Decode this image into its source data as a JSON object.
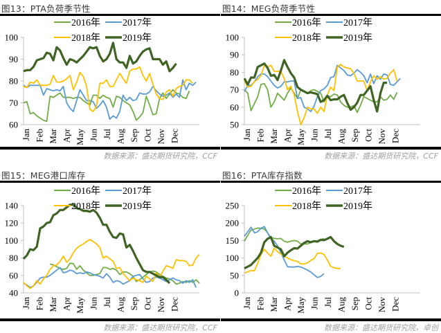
{
  "panels": [
    {
      "title": "图13：PTA负荷季节性",
      "source": "数据来源：盛达期货研究院，CCF"
    },
    {
      "title": "图14：MEG负荷季节性",
      "source": "数据来源：盛达期货研究院，CCF"
    },
    {
      "title": "图15：MEG港口库存",
      "source": "数据来源：盛达期货研究院，CCF"
    },
    {
      "title": "图16：PTA库存指数",
      "source": "数据来源：盛达期货研究院，卓创"
    }
  ],
  "colors": {
    "2016年": "#70ad47",
    "2017年": "#5b9bd5",
    "2018年": "#ffc000",
    "2019年": "#3f6424"
  },
  "chart_data": [
    {
      "type": "line",
      "title": "图13：PTA负荷季节性",
      "xlabel": "",
      "ylabel": "",
      "categories": [
        "Jan",
        "Feb",
        "Mar",
        "Apr",
        "May",
        "Jun",
        "Jul",
        "Aug",
        "Sep",
        "Oct",
        "Nov",
        "Dec"
      ],
      "ylim": [
        60,
        100
      ],
      "yticks": [
        60,
        70,
        80,
        90,
        100
      ],
      "legend": "top-center",
      "grid": false,
      "series": [
        {
          "name": "2016年",
          "values": [
            70,
            70.5,
            65,
            65.5,
            64,
            63,
            62,
            61.5,
            73,
            72.5,
            73.5,
            74.5,
            72.5,
            72.5,
            72.5,
            72,
            72.5,
            72.5,
            71,
            70,
            69,
            73.5,
            73.5,
            72,
            73.5,
            72.5,
            72,
            68,
            73,
            72.5,
            71,
            70,
            69,
            66,
            62,
            63.5,
            65.5,
            73,
            69,
            64.5,
            65,
            72,
            74.5,
            72,
            74,
            76,
            74.5,
            74,
            72.5,
            72,
            75.5
          ]
        },
        {
          "name": "2017年",
          "values": [
            78,
            77,
            78,
            78,
            78,
            78,
            73.5,
            76.5,
            76,
            75.5,
            76,
            75.5,
            77.5,
            70,
            67.5,
            66,
            71,
            76,
            73.5,
            71,
            71,
            70.5,
            67.5,
            69,
            71,
            68,
            62.5,
            64,
            63,
            66,
            73.5,
            71,
            72.5,
            71,
            71.5,
            74.5,
            74,
            74,
            75,
            77.5,
            75.5,
            74,
            73,
            73.5,
            74.5,
            72.5,
            74,
            72.5,
            80.5,
            76,
            79,
            78,
            79.5
          ]
        },
        {
          "name": "2018年",
          "values": [
            77.5,
            77,
            79.5,
            79,
            80.5,
            78,
            78,
            78,
            78.5,
            82.5,
            79.5,
            79.5,
            80,
            81,
            82.5,
            76,
            79.5,
            84,
            82,
            77.5,
            67,
            66,
            68.5,
            79,
            79,
            80.5,
            77.5,
            77.5,
            80.5,
            83.5,
            81,
            79,
            84.5,
            85.5,
            85.5,
            86.5,
            82.5,
            80,
            83.5,
            78.5,
            74,
            72,
            71.5,
            75,
            76,
            73,
            76.5,
            77.5,
            78,
            80.5,
            80.5,
            79
          ]
        },
        {
          "name": "2019年",
          "values": [
            84.5,
            85,
            85,
            86.5,
            89.5,
            90,
            90.5,
            93,
            92.5,
            89.5,
            95.5,
            94,
            90.5,
            87.5,
            90,
            89.5,
            88.5,
            90,
            91.5,
            93.5,
            95.5,
            95,
            95.5,
            91.5,
            89,
            90,
            92.5,
            97.5,
            90,
            88.5,
            88.5,
            86,
            91.5,
            88,
            89,
            91.5,
            93.5,
            94.5,
            95,
            90,
            90,
            90,
            87.5,
            89,
            84.5,
            86,
            88
          ]
        }
      ]
    },
    {
      "type": "line",
      "title": "图14：MEG负荷季节性",
      "xlabel": "",
      "ylabel": "",
      "categories": [
        "Jan",
        "Feb",
        "Mar",
        "Apr",
        "May",
        "Jun",
        "Jul",
        "Aug",
        "Sep",
        "Oct",
        "Nov",
        "Dec"
      ],
      "ylim": [
        50,
        100
      ],
      "yticks": [
        50,
        60,
        70,
        80,
        90,
        100
      ],
      "legend": "top-center",
      "grid": false,
      "series": [
        {
          "name": "2016年",
          "values": [
            70,
            68,
            58,
            62,
            66,
            73,
            73.5,
            70,
            60,
            63,
            68,
            66,
            64,
            68,
            71,
            68,
            65,
            70,
            69,
            68,
            69.5,
            70,
            69,
            68,
            63,
            66.5,
            66,
            67.5,
            67,
            63,
            61,
            60,
            60,
            61,
            57,
            61,
            66,
            65,
            64,
            63,
            63,
            66,
            64,
            64.5,
            67,
            64.5,
            68.5
          ]
        },
        {
          "name": "2017年",
          "values": [
            69,
            72.5,
            72.5,
            74.5,
            77.5,
            79,
            79,
            77.5,
            75,
            72.5,
            71,
            72,
            74.5,
            74.5,
            75,
            75,
            65,
            65.5,
            60,
            59,
            57.5,
            60.5,
            66,
            69.5,
            70.5,
            72.5,
            77,
            77.5,
            84,
            82.5,
            81,
            78.5,
            78,
            79.5,
            81.5,
            80,
            78,
            74,
            79,
            73.5,
            78,
            76,
            79,
            78.5,
            73,
            72.5,
            74.5,
            76.5
          ]
        },
        {
          "name": "2018年",
          "values": [
            75.5,
            71.5,
            72,
            74.5,
            76,
            78,
            84,
            83,
            84,
            80.5,
            80.5,
            80.5,
            76.5,
            70,
            72,
            67,
            57.5,
            50,
            54,
            60,
            59,
            59,
            56.5,
            60,
            57.5,
            67,
            71.5,
            69.5,
            83,
            84.5,
            83,
            82.5,
            82,
            79.5,
            75,
            75,
            75,
            69.5,
            74.5,
            78,
            76,
            77.5,
            76,
            76.5,
            79.5,
            81.5,
            75
          ]
        },
        {
          "name": "2019年",
          "values": [
            76.5,
            73,
            77,
            77,
            83,
            84,
            85,
            82.5,
            78,
            78.5,
            75.5,
            81,
            87,
            83,
            79.5,
            77,
            71.5,
            70,
            69,
            68,
            68.5,
            68,
            67.5,
            63,
            64,
            66.5,
            64,
            64.5,
            64.5,
            66,
            67,
            62.5,
            58.5,
            60,
            62.5,
            67,
            67,
            69.5,
            72,
            64,
            57.5,
            68,
            74,
            74
          ]
        }
      ]
    },
    {
      "type": "line",
      "title": "图15：MEG港口库存",
      "xlabel": "",
      "ylabel": "",
      "categories": [
        "Jan",
        "Feb",
        "Mar",
        "Apr",
        "May",
        "Jun",
        "Jul",
        "Aug",
        "Sep",
        "Oct",
        "Nov",
        "Dec"
      ],
      "ylim": [
        40,
        140
      ],
      "yticks": [
        40,
        60,
        80,
        100,
        120,
        140
      ],
      "legend": "top-center",
      "grid": false,
      "series": [
        {
          "name": "2016年",
          "values": [
            null,
            null,
            null,
            null,
            null,
            null,
            null,
            null,
            73,
            72,
            70,
            68,
            67,
            68,
            74,
            73.5,
            67,
            71,
            66,
            63,
            60,
            60,
            61,
            62,
            69,
            69,
            67,
            68,
            66,
            61,
            64,
            64,
            62,
            59,
            53,
            55,
            58,
            61,
            64,
            65,
            64,
            61,
            59,
            57,
            56,
            54,
            50,
            51,
            53,
            52,
            54,
            52,
            55,
            51
          ]
        },
        {
          "name": "2017年",
          "values": [
            51,
            49,
            46,
            48,
            52,
            57,
            58,
            58,
            60,
            63,
            66,
            69,
            63,
            64,
            66,
            65,
            62,
            63,
            62,
            64,
            63,
            61,
            60,
            59,
            57,
            62,
            58,
            52,
            54,
            53,
            50,
            52,
            54,
            59,
            60,
            61,
            56,
            52,
            53,
            57,
            58,
            57,
            55,
            53,
            55,
            57,
            55,
            54,
            51,
            54,
            52,
            55,
            46
          ]
        },
        {
          "name": "2018年",
          "values": [
            52,
            48,
            45,
            48,
            54,
            50,
            56,
            60,
            67,
            71,
            72,
            76,
            82,
            75,
            79,
            86,
            91,
            94,
            96,
            99,
            101,
            99,
            96,
            92,
            80,
            82,
            79,
            76,
            68,
            69,
            62,
            58,
            54,
            57,
            55,
            54,
            52,
            59,
            56,
            53,
            63,
            58,
            65,
            71,
            70,
            68,
            78,
            77,
            77,
            76,
            71,
            72,
            80,
            84
          ]
        },
        {
          "name": "2019年",
          "values": [
            79,
            83,
            90,
            89,
            93,
            114,
            116,
            120,
            121,
            129,
            131,
            135,
            135,
            138,
            141,
            141,
            137,
            136,
            134,
            134,
            133,
            135,
            132,
            126,
            118,
            118,
            110,
            104,
            103,
            108,
            107,
            92,
            95,
            88,
            80,
            73,
            66,
            64,
            64,
            62,
            60,
            58,
            58,
            55,
            51
          ]
        }
      ]
    },
    {
      "type": "line",
      "title": "图16：PTA库存指数",
      "xlabel": "",
      "ylabel": "",
      "categories": [
        "Jan",
        "Feb",
        "Mar",
        "Apr",
        "May",
        "Jun",
        "Jul",
        "Aug",
        "Sep",
        "Oct",
        "Nov",
        "Dec"
      ],
      "ylim": [
        0,
        250
      ],
      "yticks": [
        0,
        50,
        100,
        150,
        200,
        250
      ],
      "legend": "top-center",
      "grid": false,
      "series": [
        {
          "name": "2016年",
          "values": [
            148,
            165,
            180,
            183,
            186,
            185,
            183,
            172,
            158,
            156,
            155,
            156,
            148,
            145,
            148,
            150,
            148,
            140,
            140,
            140,
            144,
            148,
            145,
            152,
            156
          ]
        },
        {
          "name": "2017年",
          "values": [
            162,
            175,
            188,
            172,
            175,
            185,
            190,
            172,
            155,
            148,
            135,
            115,
            95,
            75,
            74,
            74,
            76,
            74,
            70,
            65,
            60,
            52,
            44,
            47,
            55
          ]
        },
        {
          "name": "2018年",
          "values": [
            57,
            60,
            64,
            63,
            85,
            110,
            125,
            114,
            105,
            128,
            118,
            111,
            105,
            100,
            95,
            92,
            90,
            83,
            83,
            86,
            93,
            98,
            113,
            114,
            110,
            94,
            76,
            72,
            70,
            70
          ]
        },
        {
          "name": "2019年",
          "values": [
            70,
            75,
            80,
            90,
            100,
            115,
            145,
            155,
            160,
            135,
            130,
            125,
            105,
            115,
            122,
            128,
            127,
            135,
            143,
            148,
            145,
            148,
            147,
            152,
            151,
            155,
            160,
            148,
            140,
            135,
            132
          ]
        }
      ]
    }
  ]
}
